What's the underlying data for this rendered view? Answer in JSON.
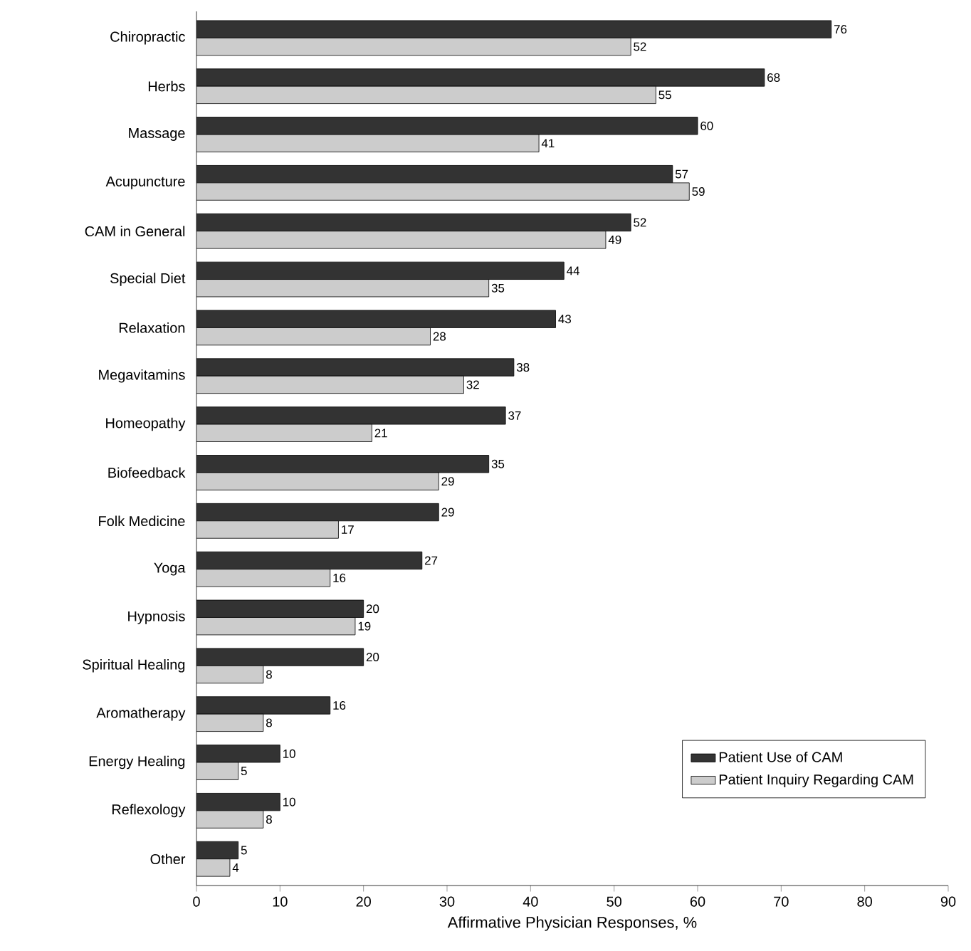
{
  "chart_data": {
    "type": "bar",
    "orientation": "horizontal",
    "xlabel": "Affirmative Physician Responses, %",
    "categories": [
      "Chiropractic",
      "Herbs",
      "Massage",
      "Acupuncture",
      "CAM in General",
      "Special Diet",
      "Relaxation",
      "Megavitamins",
      "Homeopathy",
      "Biofeedback",
      "Folk Medicine",
      "Yoga",
      "Hypnosis",
      "Spiritual Healing",
      "Aromatherapy",
      "Energy Healing",
      "Reflexology",
      "Other"
    ],
    "series": [
      {
        "name": "Patient Use of CAM",
        "color": "#333333",
        "values": [
          76,
          68,
          60,
          57,
          52,
          44,
          43,
          38,
          37,
          35,
          29,
          27,
          20,
          20,
          16,
          10,
          10,
          5
        ]
      },
      {
        "name": "Patient Inquiry Regarding CAM",
        "color": "#cccccc",
        "values": [
          52,
          55,
          41,
          59,
          49,
          35,
          28,
          32,
          21,
          29,
          17,
          16,
          19,
          8,
          8,
          5,
          8,
          4
        ]
      }
    ],
    "xlim": [
      0,
      90
    ],
    "xticks": [
      0,
      10,
      20,
      30,
      40,
      50,
      60,
      70,
      80,
      90
    ],
    "data_labels": true,
    "legend": "bottom right",
    "grid": false
  }
}
